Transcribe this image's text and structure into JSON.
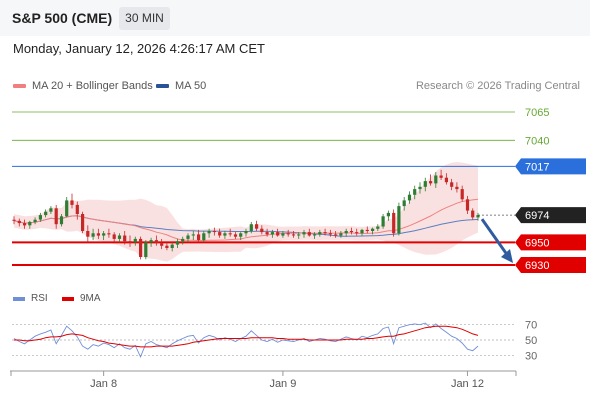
{
  "header": {
    "title": "S&P 500 (CME)",
    "timeframe": "30 MIN",
    "datetime": "Monday, January 12, 2026 4:26:17 AM CET"
  },
  "legend": {
    "ma20": "MA 20 + Bollinger Bands",
    "ma50": "MA 50",
    "copyright": "Research © 2026 Trading Central"
  },
  "rsi_legend": {
    "rsi": "RSI",
    "ma9": "9MA"
  },
  "colors": {
    "up": "#2e7d32",
    "down": "#c62828",
    "resistance": "#66a833",
    "pivot": "#2a6fdb",
    "support": "#e00000",
    "price_tag": "#222222",
    "bollinger": "#f8d7d7",
    "ma20": "#f08080",
    "ma50": "#5b7fbf",
    "rsi": "#6f8fd8",
    "rsi_ma": "#e00000",
    "arrow": "#2e5c9e"
  },
  "chart_data": [
    {
      "type": "candlestick",
      "y_axis_side": "right",
      "ylim": [
        6915,
        7080
      ],
      "x_tick_labels": [
        "Jan 8",
        "Jan 9",
        "Jan 12"
      ],
      "x_tick_positions_bars": [
        17,
        51,
        86
      ],
      "levels": [
        {
          "value": 7065,
          "label": "7065",
          "role": "resistance"
        },
        {
          "value": 7040,
          "label": "7040",
          "role": "resistance"
        },
        {
          "value": 7017,
          "label": "7017",
          "role": "pivot"
        },
        {
          "value": 6974,
          "label": "6974",
          "role": "last_price"
        },
        {
          "value": 6950,
          "label": "6950",
          "role": "support"
        },
        {
          "value": 6930,
          "label": "6930",
          "role": "support"
        }
      ],
      "forecast_arrow": {
        "from_value": 6974,
        "to_value": 6930
      },
      "candles": [
        [
          6970,
          6973,
          6966,
          6969
        ],
        [
          6969,
          6971,
          6964,
          6967
        ],
        [
          6967,
          6970,
          6962,
          6965
        ],
        [
          6965,
          6969,
          6962,
          6968
        ],
        [
          6968,
          6972,
          6966,
          6970
        ],
        [
          6970,
          6976,
          6968,
          6974
        ],
        [
          6974,
          6979,
          6972,
          6977
        ],
        [
          6977,
          6982,
          6975,
          6980
        ],
        [
          6980,
          6983,
          6962,
          6966
        ],
        [
          6966,
          6975,
          6964,
          6973
        ],
        [
          6973,
          6990,
          6972,
          6987
        ],
        [
          6987,
          6993,
          6980,
          6983
        ],
        [
          6983,
          6986,
          6970,
          6975
        ],
        [
          6975,
          6977,
          6958,
          6960
        ],
        [
          6960,
          6965,
          6950,
          6955
        ],
        [
          6955,
          6962,
          6952,
          6958
        ],
        [
          6958,
          6962,
          6953,
          6956
        ],
        [
          6956,
          6960,
          6952,
          6958
        ],
        [
          6958,
          6962,
          6954,
          6957
        ],
        [
          6957,
          6959,
          6950,
          6953
        ],
        [
          6953,
          6958,
          6950,
          6956
        ],
        [
          6956,
          6960,
          6948,
          6951
        ],
        [
          6951,
          6956,
          6946,
          6950
        ],
        [
          6950,
          6955,
          6947,
          6953
        ],
        [
          6953,
          6955,
          6935,
          6937
        ],
        [
          6937,
          6952,
          6935,
          6950
        ],
        [
          6950,
          6954,
          6946,
          6952
        ],
        [
          6952,
          6956,
          6947,
          6949
        ],
        [
          6949,
          6953,
          6944,
          6947
        ],
        [
          6947,
          6951,
          6943,
          6945
        ],
        [
          6945,
          6950,
          6942,
          6948
        ],
        [
          6948,
          6953,
          6945,
          6951
        ],
        [
          6951,
          6955,
          6948,
          6953
        ],
        [
          6953,
          6958,
          6950,
          6956
        ],
        [
          6956,
          6960,
          6952,
          6957
        ],
        [
          6957,
          6961,
          6950,
          6952
        ],
        [
          6952,
          6960,
          6950,
          6958
        ],
        [
          6958,
          6962,
          6954,
          6960
        ],
        [
          6960,
          6963,
          6956,
          6959
        ],
        [
          6959,
          6962,
          6954,
          6956
        ],
        [
          6956,
          6960,
          6953,
          6958
        ],
        [
          6958,
          6962,
          6955,
          6957
        ],
        [
          6957,
          6959,
          6953,
          6955
        ],
        [
          6955,
          6959,
          6952,
          6958
        ],
        [
          6958,
          6962,
          6955,
          6960
        ],
        [
          6960,
          6968,
          6958,
          6966
        ],
        [
          6966,
          6969,
          6960,
          6962
        ],
        [
          6962,
          6965,
          6957,
          6959
        ],
        [
          6959,
          6962,
          6955,
          6957
        ],
        [
          6957,
          6961,
          6954,
          6959
        ],
        [
          6959,
          6962,
          6955,
          6956
        ],
        [
          6956,
          6960,
          6954,
          6958
        ],
        [
          6958,
          6961,
          6955,
          6957
        ],
        [
          6957,
          6960,
          6954,
          6956
        ],
        [
          6956,
          6959,
          6953,
          6957
        ],
        [
          6957,
          6961,
          6954,
          6959
        ],
        [
          6959,
          6962,
          6955,
          6956
        ],
        [
          6956,
          6959,
          6953,
          6957
        ],
        [
          6957,
          6961,
          6955,
          6959
        ],
        [
          6959,
          6962,
          6956,
          6958
        ],
        [
          6958,
          6961,
          6955,
          6957
        ],
        [
          6957,
          6960,
          6954,
          6956
        ],
        [
          6956,
          6960,
          6954,
          6958
        ],
        [
          6958,
          6962,
          6955,
          6960
        ],
        [
          6960,
          6963,
          6957,
          6959
        ],
        [
          6959,
          6962,
          6956,
          6958
        ],
        [
          6958,
          6962,
          6956,
          6961
        ],
        [
          6961,
          6964,
          6958,
          6960
        ],
        [
          6960,
          6963,
          6957,
          6962
        ],
        [
          6962,
          6966,
          6960,
          6964
        ],
        [
          6964,
          6975,
          6962,
          6973
        ],
        [
          6973,
          6978,
          6969,
          6976
        ],
        [
          6976,
          6979,
          6955,
          6958
        ],
        [
          6958,
          6985,
          6956,
          6982
        ],
        [
          6982,
          6990,
          6978,
          6987
        ],
        [
          6987,
          6995,
          6984,
          6992
        ],
        [
          6992,
          7000,
          6988,
          6997
        ],
        [
          6997,
          7003,
          6993,
          6999
        ],
        [
          6999,
          7007,
          6995,
          7004
        ],
        [
          7004,
          7010,
          7000,
          7002
        ],
        [
          7002,
          7012,
          6998,
          7009
        ],
        [
          7009,
          7014,
          7005,
          7007
        ],
        [
          7007,
          7011,
          7001,
          7003
        ],
        [
          7003,
          7006,
          6996,
          6999
        ],
        [
          6999,
          7003,
          6994,
          6997
        ],
        [
          6997,
          7000,
          6986,
          6988
        ],
        [
          6988,
          6991,
          6975,
          6978
        ],
        [
          6978,
          6980,
          6970,
          6972
        ],
        [
          6972,
          6976,
          6969,
          6974
        ]
      ]
    },
    {
      "type": "line",
      "name": "RSI",
      "y_tick_labels": [
        "70",
        "50",
        "30"
      ],
      "reference_lines": [
        70,
        50,
        30
      ],
      "ylim": [
        20,
        80
      ],
      "series": [
        {
          "name": "RSI",
          "values": [
            52,
            48,
            45,
            50,
            55,
            58,
            60,
            63,
            45,
            56,
            68,
            62,
            54,
            42,
            38,
            44,
            42,
            46,
            44,
            40,
            45,
            40,
            38,
            43,
            28,
            45,
            48,
            44,
            42,
            40,
            45,
            49,
            52,
            55,
            56,
            46,
            53,
            56,
            54,
            50,
            53,
            51,
            48,
            52,
            55,
            62,
            56,
            50,
            48,
            51,
            47,
            50,
            49,
            48,
            50,
            52,
            48,
            50,
            52,
            51,
            49,
            48,
            51,
            54,
            52,
            50,
            55,
            53,
            56,
            58,
            65,
            67,
            45,
            66,
            68,
            70,
            71,
            70,
            72,
            66,
            71,
            65,
            60,
            55,
            52,
            46,
            38,
            36,
            42
          ]
        },
        {
          "name": "9MA",
          "values": [
            50,
            50,
            49,
            49,
            50,
            51,
            53,
            54,
            54,
            55,
            57,
            58,
            57,
            56,
            53,
            51,
            49,
            48,
            46,
            45,
            44,
            43,
            42,
            42,
            41,
            41,
            41,
            42,
            42,
            42,
            42,
            43,
            44,
            45,
            47,
            48,
            49,
            50,
            51,
            52,
            52,
            52,
            52,
            52,
            52,
            53,
            53,
            53,
            53,
            53,
            52,
            52,
            51,
            51,
            51,
            51,
            50,
            50,
            50,
            50,
            50,
            50,
            50,
            51,
            51,
            51,
            51,
            52,
            52,
            53,
            54,
            55,
            55,
            57,
            58,
            60,
            62,
            64,
            66,
            67,
            68,
            68,
            68,
            67,
            66,
            64,
            61,
            58,
            56
          ]
        }
      ]
    }
  ]
}
